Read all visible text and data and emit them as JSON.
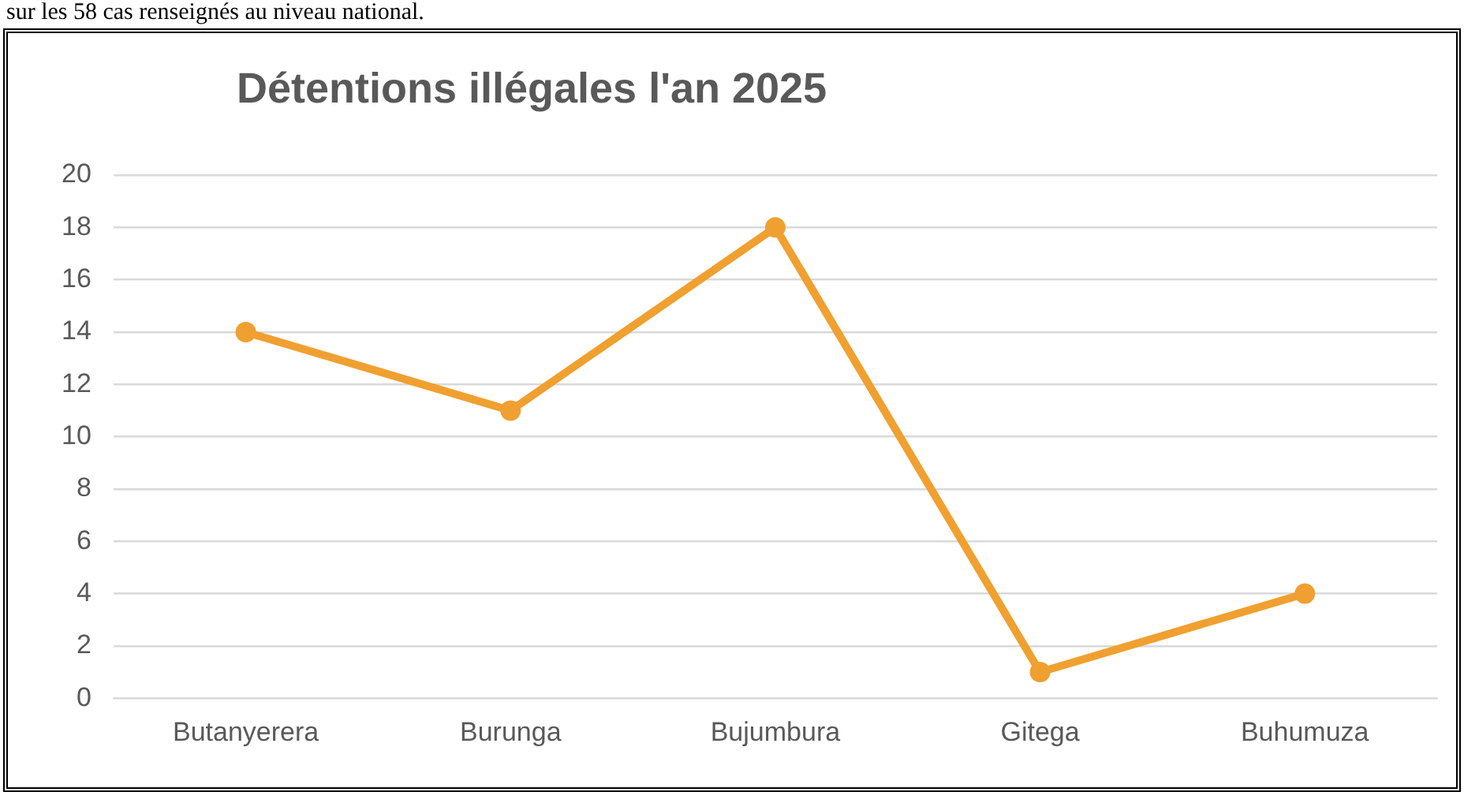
{
  "chart_data": {
    "type": "line",
    "title": "Détentions illégales l'an 2025",
    "annotations": [
      "sur les 58 cas renseignés au niveau national."
    ],
    "categories": [
      "Butanyerera",
      "Burunga",
      "Bujumbura",
      "Gitega",
      "Buhumuza"
    ],
    "series": [
      {
        "color": "#f0a030",
        "values": [
          14,
          11,
          18,
          1,
          4
        ]
      }
    ],
    "ylim": [
      0,
      20
    ],
    "yticks": [
      0,
      2,
      4,
      6,
      8,
      10,
      12,
      14,
      16,
      18,
      20
    ],
    "grid": "y",
    "legend": false,
    "marker": "circle",
    "line_style": "solid"
  }
}
